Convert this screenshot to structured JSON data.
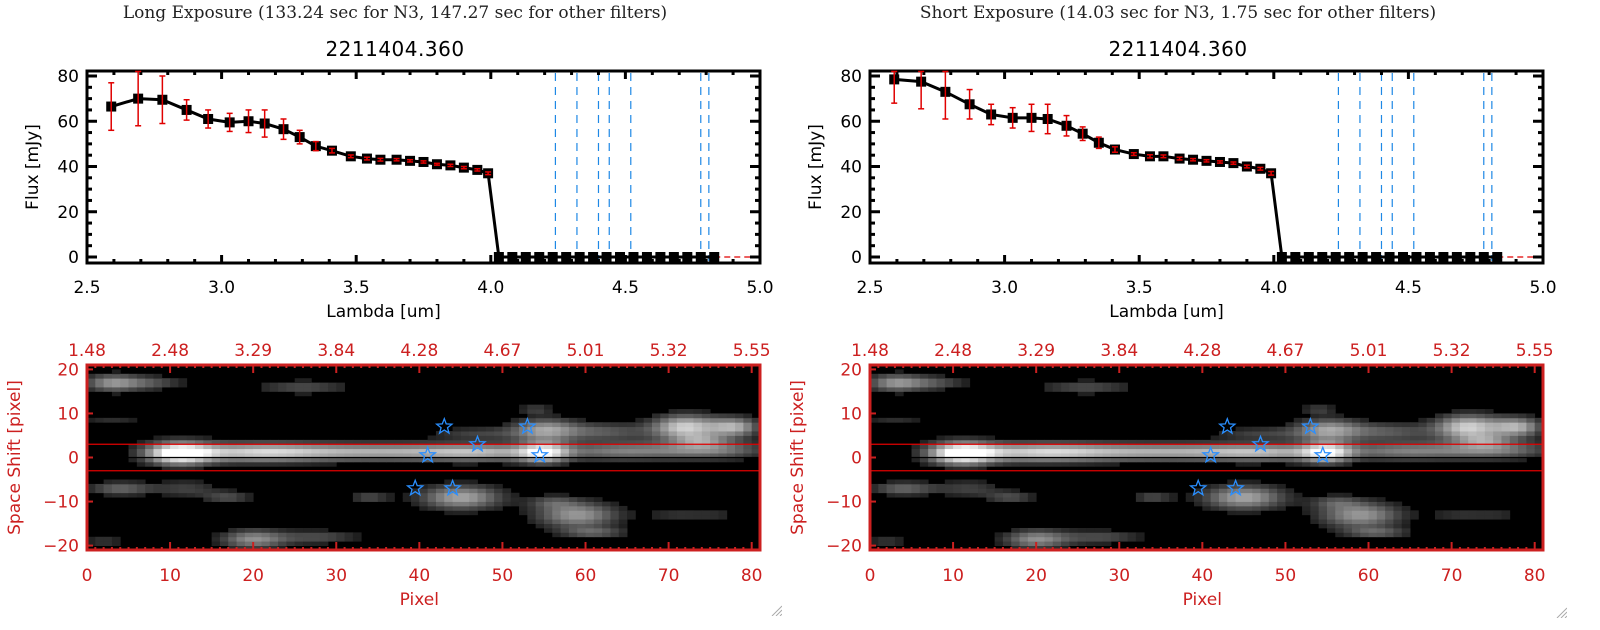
{
  "panels": [
    {
      "title": "Long Exposure (133.24 sec for N3, 147.27 sec for other filters)",
      "object_id": "2211404.360"
    },
    {
      "title": "Short Exposure (14.03 sec for N3, 1.75 sec for other filters)",
      "object_id": "2211404.360"
    }
  ],
  "colors": {
    "spectrum_line": "#000000",
    "error_bar": "#e00000",
    "filter_line": "#1e88e5",
    "image_axis": "#cc2020",
    "aperture_line": "#e00000",
    "star_marker": "#2a8fff"
  },
  "chart_data": [
    {
      "type": "line",
      "title": "2211404.360",
      "xlabel": "Lambda [um]",
      "ylabel": "Flux [mJy]",
      "xlim": [
        2.5,
        5.0
      ],
      "ylim": [
        0,
        80
      ],
      "xticks": [
        "2.5",
        "3.0",
        "3.5",
        "4.0",
        "4.5",
        "5.0"
      ],
      "yticks": [
        "0",
        "20",
        "40",
        "60",
        "80"
      ],
      "series": [
        {
          "name": "flux",
          "x": [
            2.59,
            2.69,
            2.78,
            2.87,
            2.95,
            3.03,
            3.1,
            3.16,
            3.23,
            3.29,
            3.35,
            3.41,
            3.48,
            3.54,
            3.59,
            3.65,
            3.7,
            3.75,
            3.8,
            3.85,
            3.9,
            3.95,
            3.99,
            4.03,
            4.08,
            4.13,
            4.18,
            4.23,
            4.28,
            4.33,
            4.38,
            4.43,
            4.48,
            4.53,
            4.58,
            4.63,
            4.68,
            4.73,
            4.78,
            4.83
          ],
          "y": [
            66.5,
            70,
            69.5,
            65,
            61,
            59.5,
            60,
            59,
            56.5,
            53,
            49,
            47,
            44.5,
            43.5,
            43,
            43,
            42.5,
            42,
            41,
            40.5,
            39.5,
            38.5,
            37,
            0,
            0,
            0,
            0,
            0,
            0,
            0,
            0,
            0,
            0,
            0,
            0,
            0,
            0,
            0,
            0,
            0
          ],
          "err": [
            10.5,
            12,
            10.5,
            4.5,
            4,
            4,
            5,
            6,
            4.5,
            3,
            2,
            1,
            0.6,
            0.6,
            0.6,
            0.5,
            0.5,
            0.5,
            0.4,
            0.5,
            0.5,
            0.5,
            0.6,
            0,
            0,
            0,
            0,
            0,
            0,
            0,
            0,
            0,
            0,
            0,
            0,
            0,
            0,
            0,
            0,
            0
          ]
        }
      ],
      "filter_lines": [
        4.24,
        4.32,
        4.4,
        4.44,
        4.52,
        4.78,
        4.81
      ],
      "zero_line": 0
    },
    {
      "type": "heatmap",
      "xlabel": "Pixel",
      "ylabel": "Space Shift [pixel]",
      "xlim": [
        0,
        81
      ],
      "ylim": [
        -21,
        21
      ],
      "xticks": [
        "0",
        "10",
        "20",
        "30",
        "40",
        "50",
        "60",
        "70",
        "80"
      ],
      "yticks": [
        "-20",
        "-10",
        "0",
        "10",
        "20"
      ],
      "top_ticks": [
        "1.48",
        "2.48",
        "3.29",
        "3.84",
        "4.28",
        "4.67",
        "5.01",
        "5.32",
        "5.55"
      ],
      "aperture": [
        -3,
        3
      ],
      "center": 0,
      "stars": [
        [
          43,
          7
        ],
        [
          53,
          7
        ],
        [
          47,
          3
        ],
        [
          41,
          0.5
        ],
        [
          54.5,
          0.5
        ],
        [
          39.5,
          -7
        ],
        [
          44,
          -7
        ]
      ],
      "blobs": [
        [
          11,
          1,
          4,
          2.6,
          1.0
        ],
        [
          20,
          1.2,
          9,
          2.2,
          0.72
        ],
        [
          35,
          1.3,
          12,
          2.0,
          0.62
        ],
        [
          48,
          1.2,
          8,
          2.0,
          0.55
        ],
        [
          55,
          1.2,
          3,
          2.5,
          0.72
        ],
        [
          64,
          1.5,
          7,
          2.2,
          0.45
        ],
        [
          75,
          1.8,
          7,
          2.2,
          0.5
        ],
        [
          55,
          6.5,
          4,
          2.6,
          0.55
        ],
        [
          62,
          6,
          6,
          2.0,
          0.35
        ],
        [
          72,
          7,
          4,
          2.8,
          0.8
        ],
        [
          78,
          7,
          3,
          2.2,
          0.65
        ],
        [
          47,
          5.5,
          6,
          1.5,
          0.25
        ],
        [
          3,
          17,
          3.5,
          2,
          0.55
        ],
        [
          8,
          17,
          4,
          1.6,
          0.3
        ],
        [
          26,
          16,
          6,
          1.6,
          0.3
        ],
        [
          3,
          8.5,
          4,
          1.6,
          0.18
        ],
        [
          4,
          -7,
          4,
          1.6,
          0.4
        ],
        [
          12,
          -7,
          4,
          2.0,
          0.25
        ],
        [
          17,
          -9,
          3,
          1.4,
          0.3
        ],
        [
          20,
          -18.5,
          4,
          2.2,
          0.55
        ],
        [
          28,
          -18,
          5,
          1.6,
          0.3
        ],
        [
          34,
          -9,
          2.5,
          1.2,
          0.3
        ],
        [
          45,
          -9,
          5,
          2.8,
          0.65
        ],
        [
          59,
          -13,
          5,
          3.0,
          0.6
        ],
        [
          61,
          -17,
          4,
          1.2,
          0.35
        ],
        [
          56,
          -10,
          3,
          1.5,
          0.25
        ],
        [
          71,
          -13,
          4,
          1.0,
          0.22
        ],
        [
          76,
          -13,
          3,
          0.8,
          0.18
        ],
        [
          74,
          4,
          3,
          1.5,
          0.3
        ],
        [
          2,
          -19,
          2.5,
          1.2,
          0.22
        ],
        [
          54,
          11,
          2,
          1.0,
          0.25
        ]
      ]
    },
    {
      "type": "line",
      "title": "2211404.360",
      "xlabel": "Lambda [um]",
      "ylabel": "Flux [mJy]",
      "xlim": [
        2.5,
        5.0
      ],
      "ylim": [
        0,
        80
      ],
      "xticks": [
        "2.5",
        "3.0",
        "3.5",
        "4.0",
        "4.5",
        "5.0"
      ],
      "yticks": [
        "0",
        "20",
        "40",
        "60",
        "80"
      ],
      "series": [
        {
          "name": "flux",
          "x": [
            2.59,
            2.69,
            2.78,
            2.87,
            2.95,
            3.03,
            3.1,
            3.16,
            3.23,
            3.29,
            3.35,
            3.41,
            3.48,
            3.54,
            3.59,
            3.65,
            3.7,
            3.75,
            3.8,
            3.85,
            3.9,
            3.95,
            3.99,
            4.03,
            4.08,
            4.13,
            4.18,
            4.23,
            4.28,
            4.33,
            4.38,
            4.43,
            4.48,
            4.53,
            4.58,
            4.63,
            4.68,
            4.73,
            4.78,
            4.83
          ],
          "y": [
            78.5,
            77.5,
            73,
            67.5,
            63,
            61.5,
            61.5,
            61,
            58,
            54.5,
            50.5,
            47.5,
            45.5,
            44.5,
            44.5,
            43.5,
            43,
            42.5,
            42,
            41.5,
            40,
            39,
            37,
            0,
            0,
            0,
            0,
            0,
            0,
            0,
            0,
            0,
            0,
            0,
            0,
            0,
            0,
            0,
            0,
            0
          ],
          "err": [
            10.5,
            12,
            12,
            6.5,
            4.5,
            4.5,
            6,
            6.5,
            4.5,
            3,
            2.5,
            1.2,
            0.6,
            0.7,
            0.6,
            0.6,
            0.5,
            0.5,
            0.5,
            0.5,
            0.6,
            0.6,
            0.8,
            0,
            0,
            0,
            0,
            0,
            0,
            0,
            0,
            0,
            0,
            0,
            0,
            0,
            0,
            0,
            0,
            0
          ]
        }
      ],
      "filter_lines": [
        4.24,
        4.32,
        4.4,
        4.44,
        4.52,
        4.78,
        4.81
      ],
      "zero_line": 0
    },
    {
      "type": "heatmap",
      "xlabel": "Pixel",
      "ylabel": "Space Shift [pixel]",
      "xlim": [
        0,
        81
      ],
      "ylim": [
        -21,
        21
      ],
      "xticks": [
        "0",
        "10",
        "20",
        "30",
        "40",
        "50",
        "60",
        "70",
        "80"
      ],
      "yticks": [
        "-20",
        "-10",
        "0",
        "10",
        "20"
      ],
      "top_ticks": [
        "1.48",
        "2.48",
        "3.29",
        "3.84",
        "4.28",
        "4.67",
        "5.01",
        "5.32",
        "5.55"
      ],
      "aperture": [
        -3,
        3
      ],
      "center": 0,
      "stars": [
        [
          43,
          7
        ],
        [
          53,
          7
        ],
        [
          47,
          3
        ],
        [
          41,
          0.5
        ],
        [
          54.5,
          0.5
        ],
        [
          39.5,
          -7
        ],
        [
          44,
          -7
        ]
      ],
      "blobs": [
        [
          11,
          1,
          4,
          2.6,
          1.0
        ],
        [
          20,
          1.2,
          9,
          2.2,
          0.72
        ],
        [
          35,
          1.3,
          12,
          2.0,
          0.62
        ],
        [
          48,
          1.2,
          8,
          2.0,
          0.55
        ],
        [
          55,
          1.2,
          3,
          2.5,
          0.72
        ],
        [
          64,
          1.5,
          7,
          2.2,
          0.45
        ],
        [
          75,
          1.8,
          7,
          2.2,
          0.5
        ],
        [
          55,
          6.5,
          4,
          2.6,
          0.55
        ],
        [
          62,
          6,
          6,
          2.0,
          0.35
        ],
        [
          72,
          7,
          4,
          2.8,
          0.8
        ],
        [
          78,
          7,
          3,
          2.2,
          0.65
        ],
        [
          47,
          5.5,
          6,
          1.5,
          0.25
        ],
        [
          3,
          17,
          3.5,
          2,
          0.55
        ],
        [
          8,
          17,
          4,
          1.6,
          0.3
        ],
        [
          26,
          16,
          6,
          1.6,
          0.3
        ],
        [
          3,
          8.5,
          4,
          1.6,
          0.18
        ],
        [
          4,
          -7,
          4,
          1.6,
          0.4
        ],
        [
          12,
          -7,
          4,
          2.0,
          0.25
        ],
        [
          17,
          -9,
          3,
          1.4,
          0.3
        ],
        [
          20,
          -18.5,
          4,
          2.2,
          0.55
        ],
        [
          28,
          -18,
          5,
          1.6,
          0.3
        ],
        [
          34,
          -9,
          2.5,
          1.2,
          0.3
        ],
        [
          45,
          -9,
          5,
          2.8,
          0.65
        ],
        [
          59,
          -13,
          5,
          3.0,
          0.6
        ],
        [
          61,
          -17,
          4,
          1.2,
          0.35
        ],
        [
          56,
          -10,
          3,
          1.5,
          0.25
        ],
        [
          71,
          -13,
          4,
          1.0,
          0.22
        ],
        [
          76,
          -13,
          3,
          0.8,
          0.18
        ],
        [
          74,
          4,
          3,
          1.5,
          0.3
        ],
        [
          2,
          -19,
          2.5,
          1.2,
          0.22
        ],
        [
          54,
          11,
          2,
          1.0,
          0.25
        ]
      ]
    }
  ]
}
